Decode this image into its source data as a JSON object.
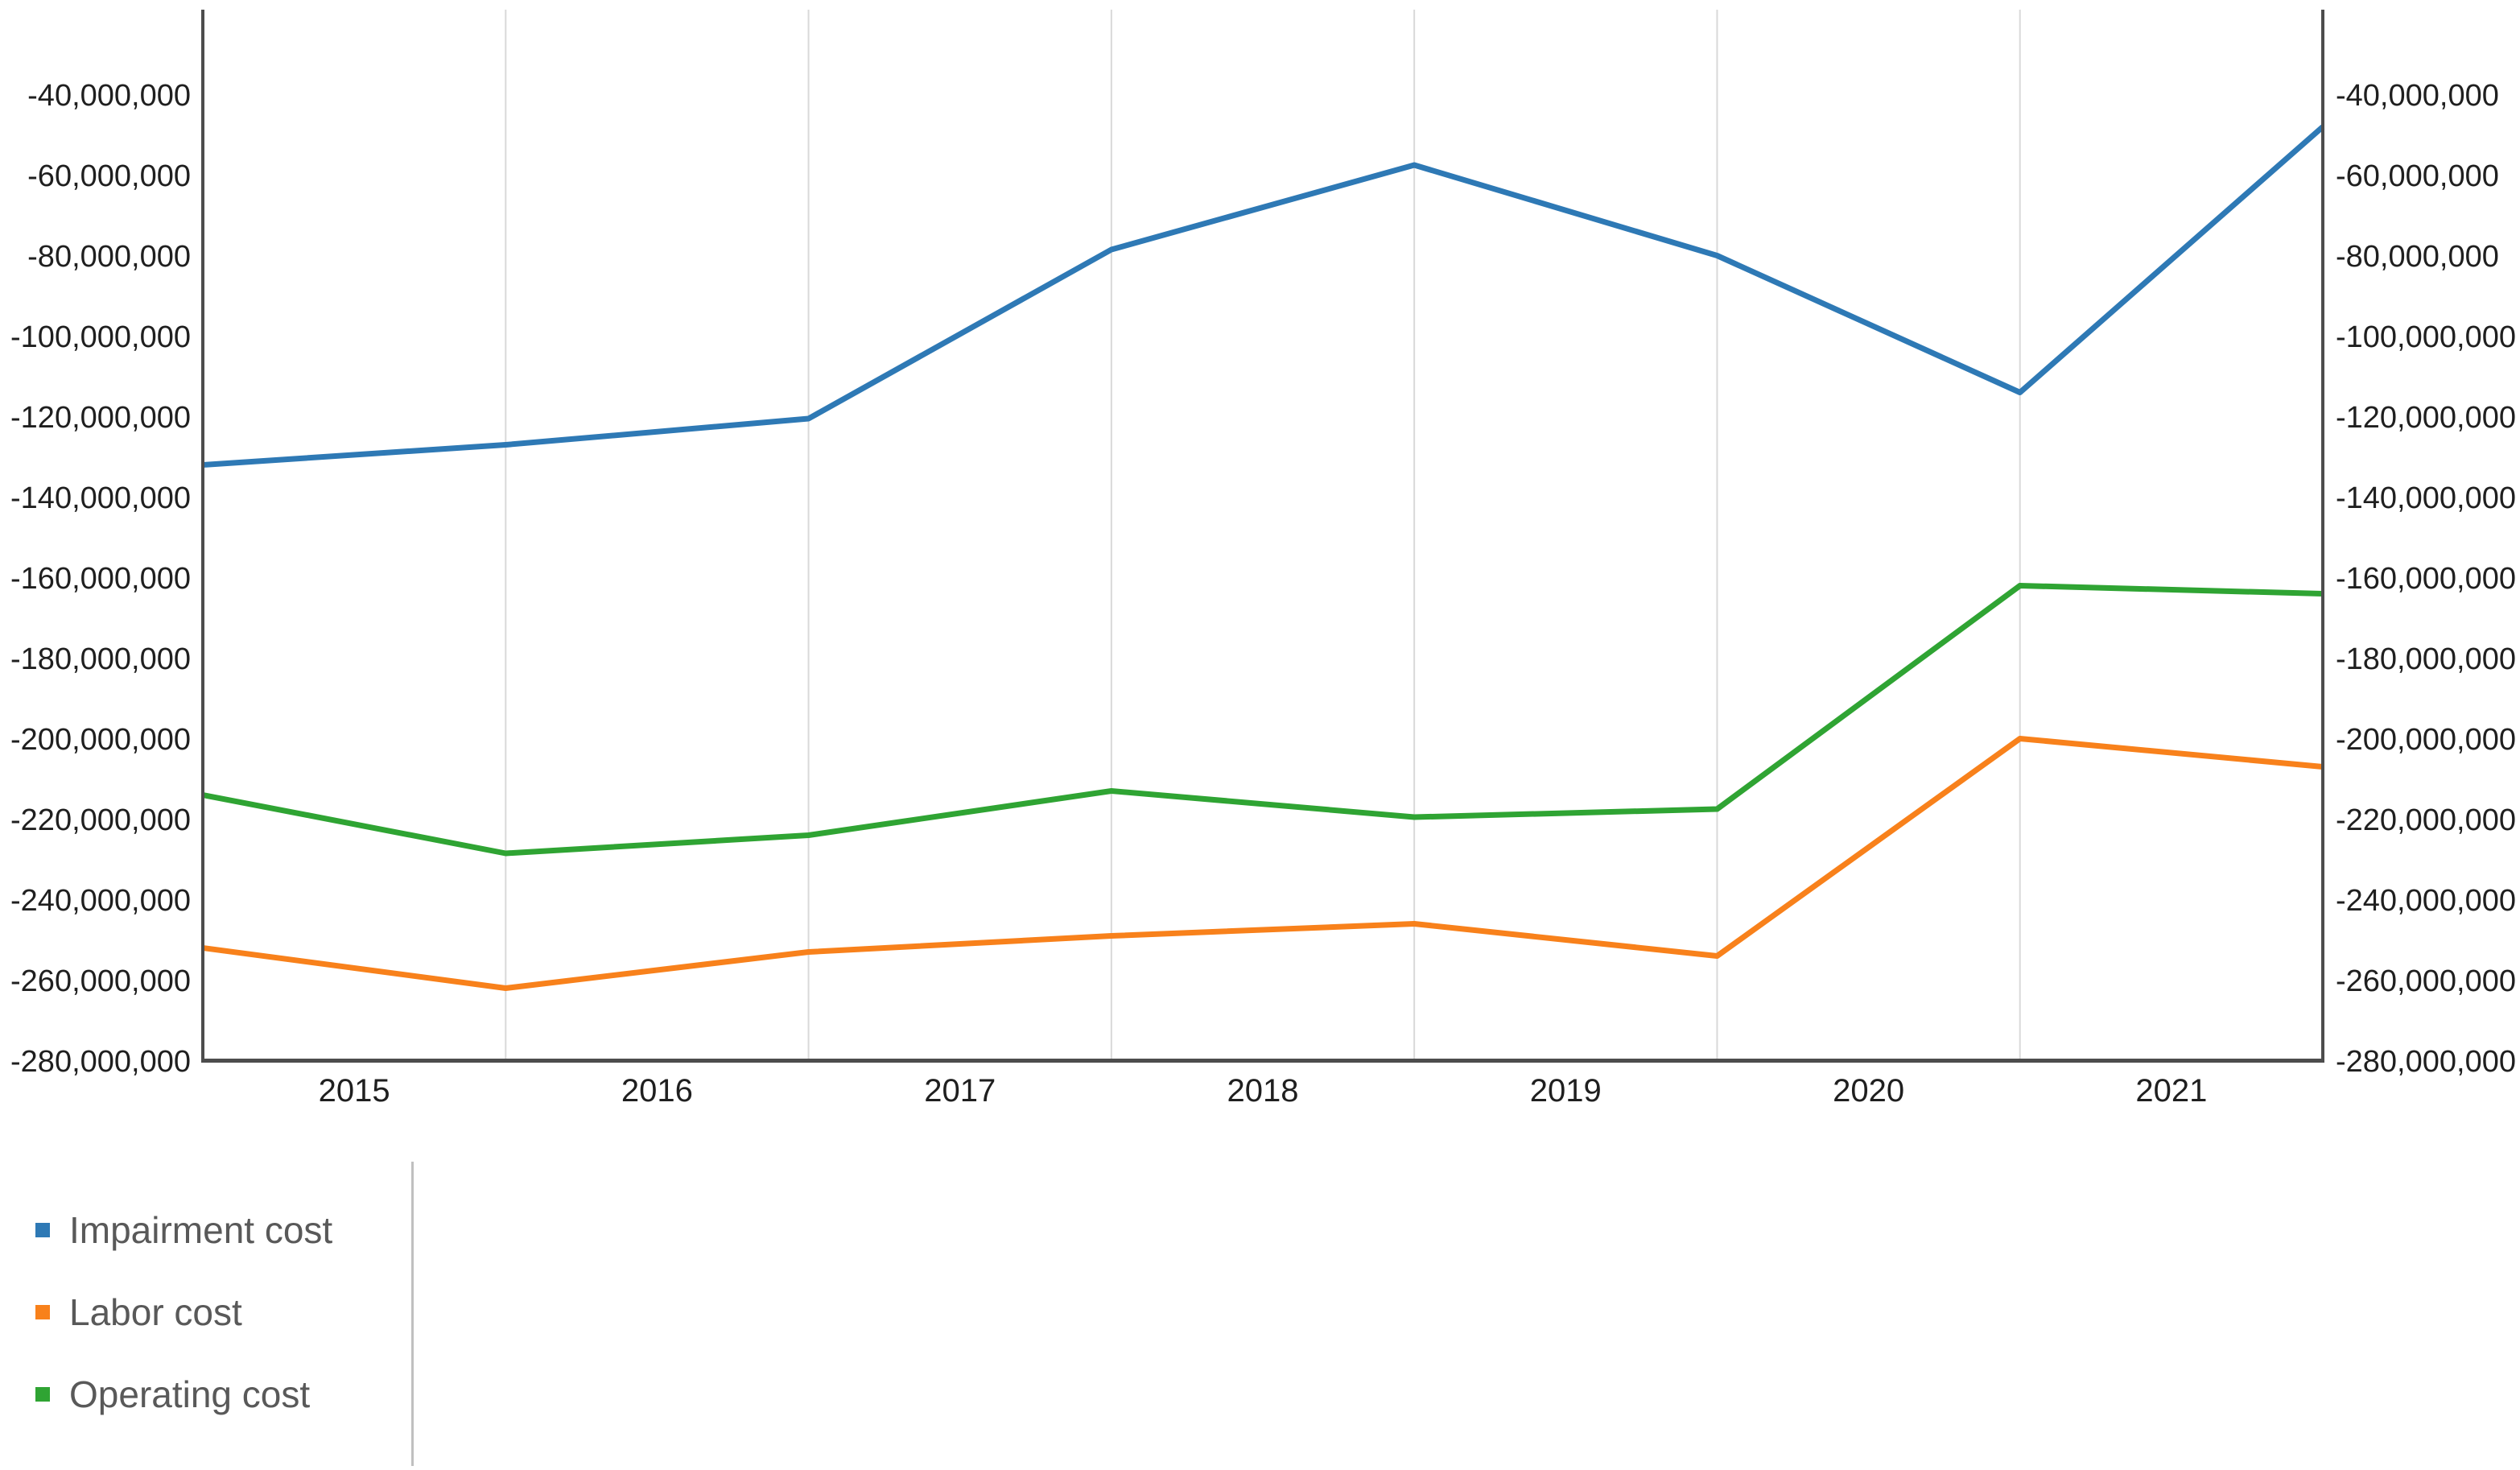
{
  "chart_data": {
    "type": "line",
    "title": "",
    "x_axis": {
      "tick_labels": [
        "2015",
        "2016",
        "2017",
        "2018",
        "2019",
        "2020",
        "2021"
      ]
    },
    "y_axis": {
      "axis_min": -280000000,
      "axis_max": -20000000,
      "tick_values": [
        -40000000,
        -60000000,
        -80000000,
        -100000000,
        -120000000,
        -140000000,
        -160000000,
        -180000000,
        -200000000,
        -220000000,
        -240000000,
        -260000000,
        -280000000
      ],
      "tick_labels_left": [
        "-40,000,000",
        "-60,000,000",
        "-80,000,000",
        "-100,000,000",
        "-120,000,000",
        "-140,000,000",
        "-160,000,000",
        "-180,000,000",
        "-200,000,000",
        "-220,000,000",
        "-240,000,000",
        "-260,000,000",
        "-280,000,000"
      ],
      "tick_labels_right": [
        "-40,000,000",
        "-60,000,000",
        "-80,000,000",
        "-100,000,000",
        "-120,000,000",
        "-140,000,000",
        "-160,000,000",
        "-180,000,000",
        "-200,000,000",
        "-220,000,000",
        "-240,000,000",
        "-260,000,000",
        "-280,000,000"
      ]
    },
    "series": [
      {
        "name": "Impairment cost",
        "color": "#2E79B5",
        "values": [
          -132000000,
          -127000000,
          -120500000,
          -78500000,
          -57500000,
          -80000000,
          -114000000,
          -48000000
        ]
      },
      {
        "name": "Labor cost",
        "color": "#F8811B",
        "values": [
          -252000000,
          -262000000,
          -253000000,
          -249000000,
          -246000000,
          -254000000,
          -200000000,
          -207000000
        ]
      },
      {
        "name": "Operating cost",
        "color": "#2FA433",
        "values": [
          -214000000,
          -228500000,
          -224000000,
          -213000000,
          -219500000,
          -217500000,
          -162000000,
          -164000000
        ]
      }
    ],
    "grid": "vertical",
    "legend_position": "bottom-left"
  },
  "styles": {
    "background": "#FFFFFF",
    "gridline_color": "#D9D9D9",
    "axis_color": "#4D4D4D",
    "tick_text_color": "#1F1F1F",
    "legend_text_color": "#595959",
    "legend_divider_color": "#C0C0C0"
  }
}
